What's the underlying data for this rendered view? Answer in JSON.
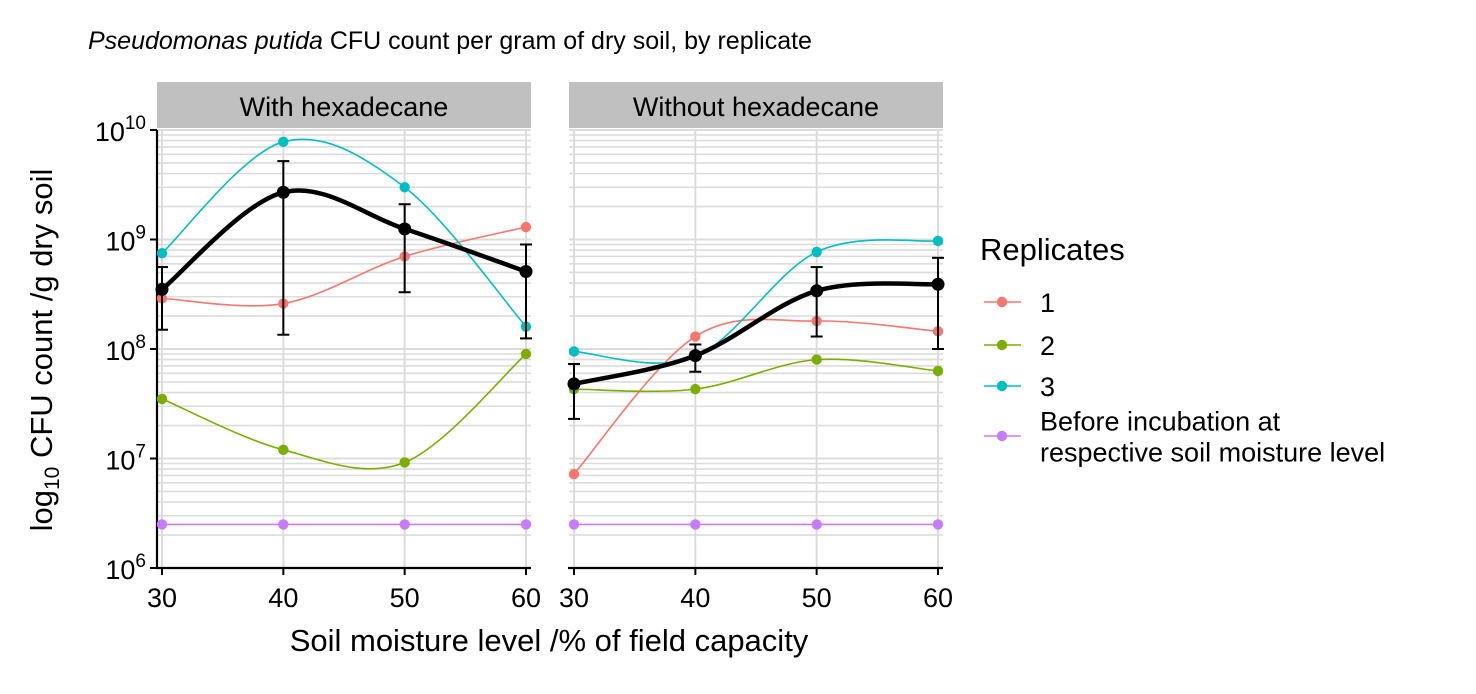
{
  "chart_data": {
    "type": "line",
    "title": {
      "italic_part": "Pseudomonas putida",
      "rest": " CFU count per gram of dry soil, by replicate"
    },
    "xlabel": "Soil moisture level /% of field capacity",
    "ylabel": {
      "prefix": "log",
      "subscript": "10",
      "rest": " CFU count /g dry soil"
    },
    "y_scale": "log10",
    "ylim": [
      1000000,
      10000000000
    ],
    "xlim": [
      30,
      60
    ],
    "x_ticks": [
      30,
      40,
      50,
      60
    ],
    "y_ticks": [
      {
        "base": "10",
        "exp": "6"
      },
      {
        "base": "10",
        "exp": "7"
      },
      {
        "base": "10",
        "exp": "8"
      },
      {
        "base": "10",
        "exp": "9"
      },
      {
        "base": "10",
        "exp": "10"
      }
    ],
    "legend": {
      "title": "Replicates",
      "position": "right",
      "entries": [
        {
          "key": "1",
          "lines": [
            "1"
          ],
          "color": "#F8766D"
        },
        {
          "key": "2",
          "lines": [
            "2"
          ],
          "color": "#7CAE00"
        },
        {
          "key": "3",
          "lines": [
            "3"
          ],
          "color": "#00BFC4"
        },
        {
          "key": "before",
          "lines": [
            "Before incubation at",
            "respective soil moisture level"
          ],
          "color": "#C77CFF"
        }
      ]
    },
    "mean_color": "#000000",
    "panels": [
      {
        "label": "With hexadecane",
        "x": [
          30,
          40,
          50,
          60
        ],
        "series": [
          {
            "key": "1",
            "values": [
              290000000,
              260000000,
              700000000,
              1300000000
            ]
          },
          {
            "key": "2",
            "values": [
              35000000,
              12000000,
              9200000,
              90000000
            ]
          },
          {
            "key": "3",
            "values": [
              750000000,
              7800000000,
              3000000000,
              160000000
            ]
          },
          {
            "key": "before",
            "values": [
              2500000,
              2500000,
              2500000,
              2500000
            ]
          }
        ],
        "mean": {
          "values": [
            350000000,
            2700000000,
            1250000000,
            510000000
          ],
          "error_low": [
            150000000,
            135000000,
            330000000,
            125000000
          ],
          "error_high": [
            560000000,
            5200000000,
            2100000000,
            900000000
          ]
        }
      },
      {
        "label": "Without hexadecane",
        "x": [
          30,
          40,
          50,
          60
        ],
        "series": [
          {
            "key": "1",
            "values": [
              7200000,
              130000000,
              180000000,
              145000000
            ]
          },
          {
            "key": "2",
            "values": [
              43000000,
              43000000,
              80000000,
              63000000
            ]
          },
          {
            "key": "3",
            "values": [
              95000000,
              85000000,
              770000000,
              970000000
            ]
          },
          {
            "key": "before",
            "values": [
              2500000,
              2500000,
              2500000,
              2500000
            ]
          }
        ],
        "mean": {
          "values": [
            48000000,
            87000000,
            340000000,
            390000000
          ],
          "error_low": [
            23000000,
            62000000,
            130000000,
            100000000
          ],
          "error_high": [
            73000000,
            110000000,
            560000000,
            680000000
          ]
        }
      }
    ]
  }
}
